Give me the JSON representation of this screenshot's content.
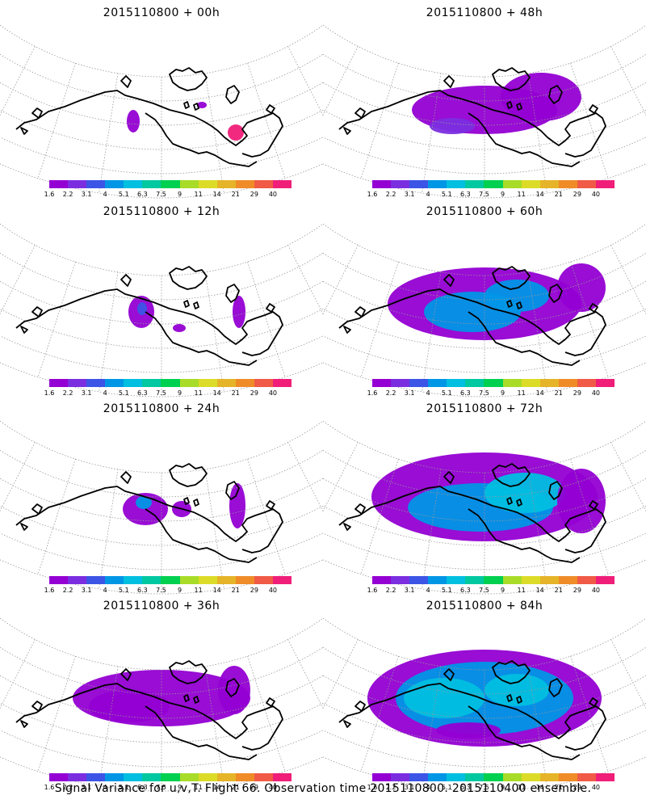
{
  "colorbar": {
    "colors": [
      "#9400d3",
      "#7b2ee0",
      "#3c55e6",
      "#0096e6",
      "#00bfe0",
      "#00c8a0",
      "#00d050",
      "#a8dc28",
      "#dcdc28",
      "#e6b428",
      "#f08c28",
      "#f05a46",
      "#f01e78"
    ],
    "labels": [
      "1.6",
      "2.2",
      "3.1",
      "4",
      "5.1",
      "6.3",
      "7.5",
      "9",
      "11",
      "14",
      "21",
      "29",
      "40"
    ]
  },
  "panels": [
    {
      "title": "2015110800 + 00h"
    },
    {
      "title": "2015110800 + 48h"
    },
    {
      "title": "2015110800 + 12h"
    },
    {
      "title": "2015110800 + 60h"
    },
    {
      "title": "2015110800 + 24h"
    },
    {
      "title": "2015110800 + 72h"
    },
    {
      "title": "2015110800 + 36h"
    },
    {
      "title": "2015110800 + 84h"
    }
  ],
  "footer": "Signal Variance for u,v,T. Flight 66. Observation time 2015110800. 2015110400 ensemble."
}
